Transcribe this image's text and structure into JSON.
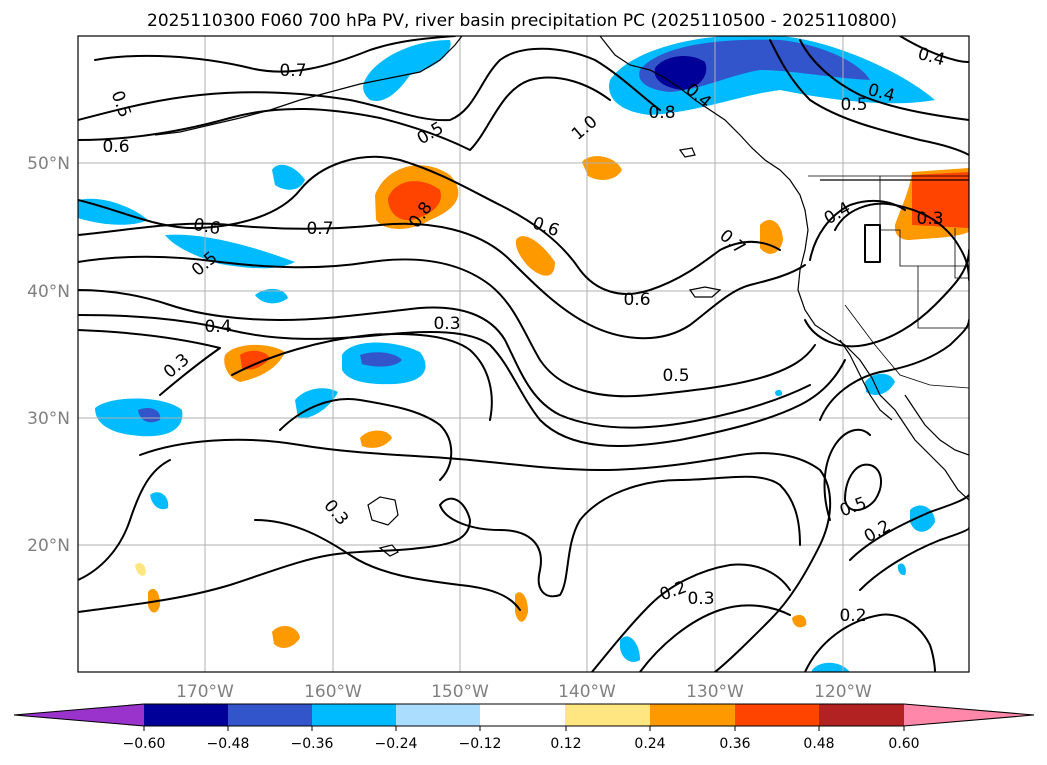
{
  "title": "2025110300 F060 700 hPa PV, river basin precipitation PC (2025110500 - 2025110800)",
  "map": {
    "lon_ticks": [
      "170°W",
      "160°W",
      "150°W",
      "140°W",
      "130°W",
      "120°W"
    ],
    "lat_ticks": [
      "50°N",
      "40°N",
      "30°N",
      "20°N"
    ]
  },
  "contour_labels": [
    "0.7",
    "0.5",
    "0.6",
    "0.5",
    "1.0",
    "0.8",
    "0.4",
    "0.5",
    "0.4",
    "0.6",
    "0.7",
    "0.5",
    "0.8",
    "0.6",
    "0.7",
    "0.6",
    "0.3",
    "0.4",
    "0.3",
    "0.4",
    "0.3",
    "0.5",
    "0.3",
    "0.5",
    "0.2",
    "0.2",
    "0.3",
    "0.2"
  ],
  "colorbar": {
    "ticks": [
      "−0.60",
      "−0.48",
      "−0.36",
      "−0.24",
      "−0.12",
      "0.12",
      "0.24",
      "0.36",
      "0.48",
      "0.60"
    ],
    "colors": [
      "#9933cc",
      "#000099",
      "#3355cc",
      "#00bbff",
      "#aaddff",
      "#ffffff",
      "#ffe680",
      "#ff9900",
      "#ff4400",
      "#b22222",
      "#ff88aa"
    ]
  },
  "palette": {
    "neg_strong": "#000099",
    "neg_mid": "#3355cc",
    "neg": "#00bbff",
    "neg_weak": "#aaddff",
    "pos_weak": "#ffe680",
    "pos": "#ff9900",
    "pos_mid": "#ff4400"
  }
}
